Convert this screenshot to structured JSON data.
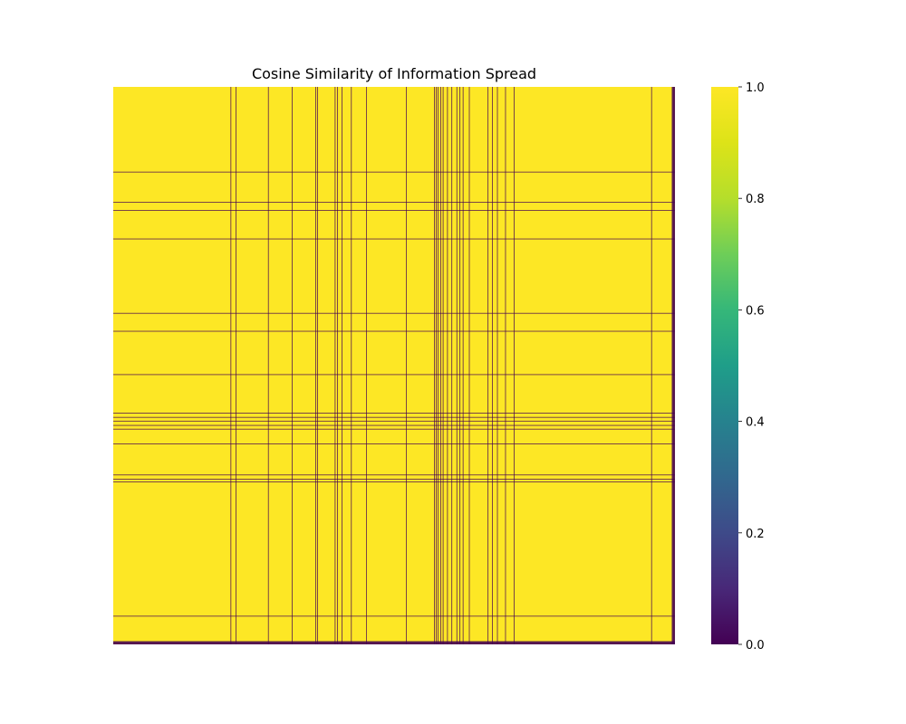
{
  "chart_data": {
    "type": "heatmap",
    "title": "Cosine Similarity of Information Spread",
    "xlabel": "",
    "ylabel": "",
    "colormap": "viridis",
    "value_range": [
      0.0,
      1.0
    ],
    "high_value": 1.0,
    "low_value": 0.0,
    "background_value": 1.0,
    "n_cells": 900,
    "x_tick_labels": [],
    "y_tick_labels": [],
    "zero_columns": [
      188,
      196,
      248,
      286,
      324,
      327,
      355,
      359,
      366,
      381,
      405,
      469,
      514,
      517,
      520,
      524,
      528,
      535,
      542,
      550,
      555,
      560,
      570,
      600,
      607,
      615,
      628,
      642,
      862,
      895,
      896,
      897,
      898,
      899
    ],
    "zero_rows": [
      137,
      186,
      199,
      245,
      365,
      394,
      464,
      526,
      533,
      539,
      546,
      552,
      576,
      626,
      633,
      637,
      854,
      895,
      896,
      897,
      898,
      899
    ],
    "colorbar": {
      "ticks": [
        0.0,
        0.2,
        0.4,
        0.6,
        0.8,
        1.0
      ],
      "tick_labels": [
        "0.0",
        "0.2",
        "0.4",
        "0.6",
        "0.8",
        "1.0"
      ]
    },
    "grid": false,
    "legend": "colorbar-right"
  }
}
